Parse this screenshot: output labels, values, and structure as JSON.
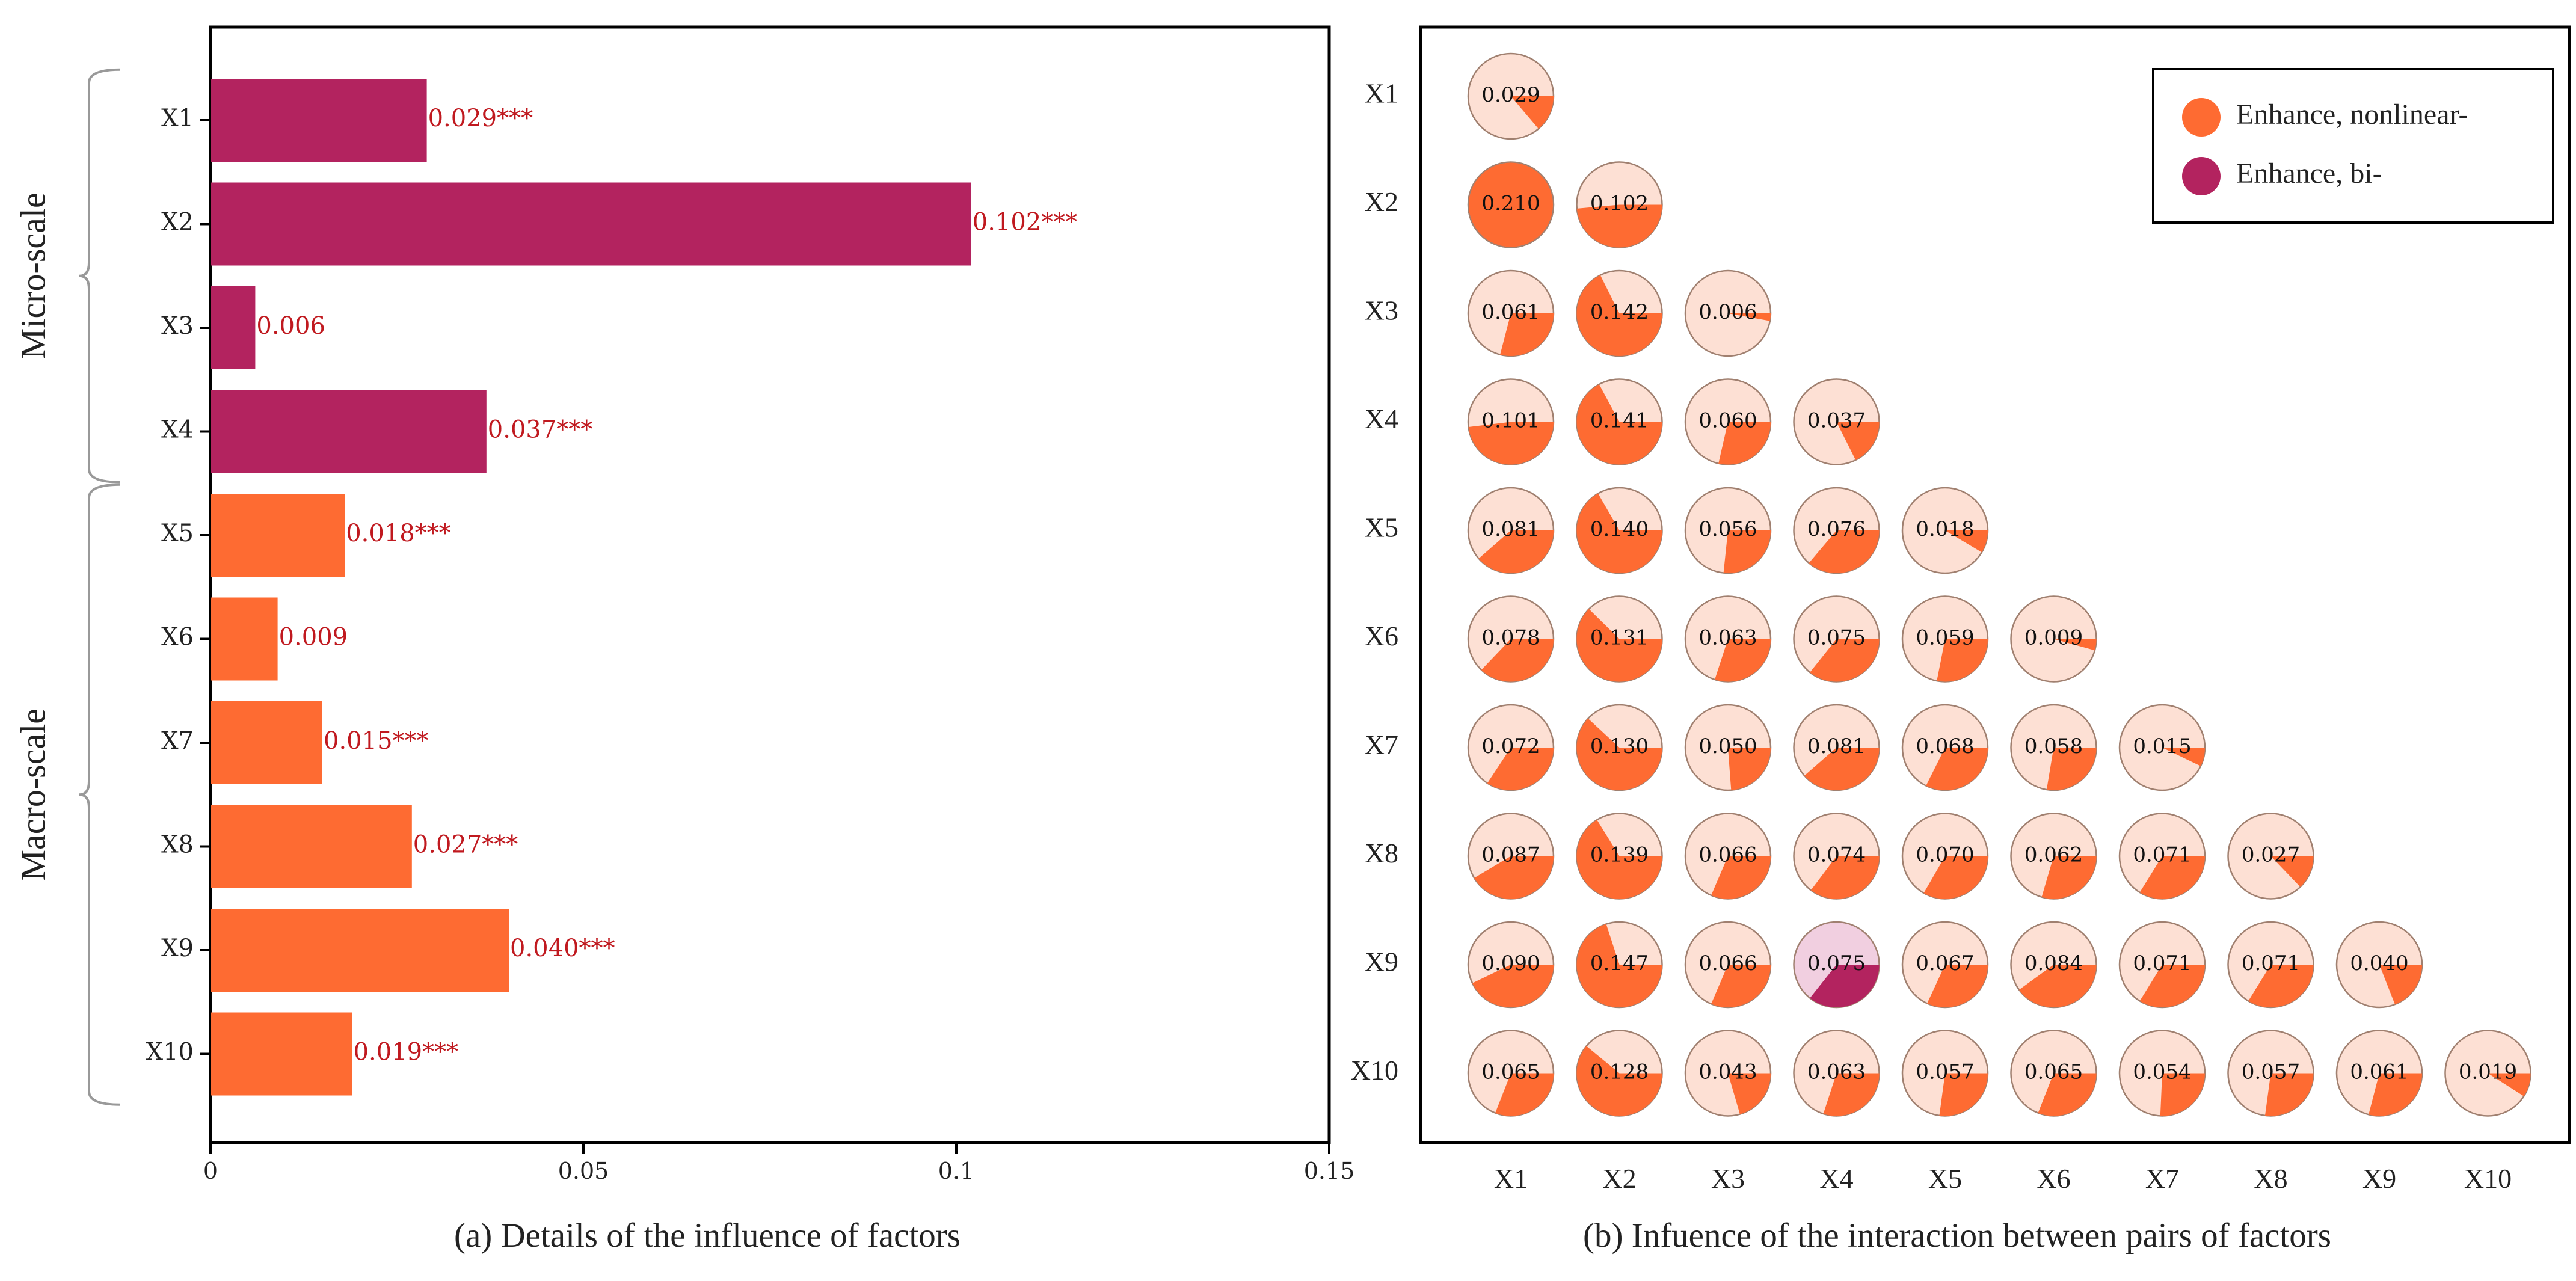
{
  "colors": {
    "micro": "#b3235f",
    "macro": "#fe6b32",
    "value_label": "#c0191f",
    "pie_background": "#fde0d4",
    "pie_background_bi": "#f1cfe0",
    "axis": "#000000",
    "bracket": "#999999"
  },
  "captions": {
    "left": "(a) Details of the influence of factors",
    "right": "(b) Infuence of the interaction between pairs of factors"
  },
  "chart_data": [
    {
      "type": "bar",
      "orientation": "horizontal",
      "title": "(a) Details of the influence of factors",
      "categories": [
        "X1",
        "X2",
        "X3",
        "X4",
        "X5",
        "X6",
        "X7",
        "X8",
        "X9",
        "X10"
      ],
      "values": [
        0.029,
        0.102,
        0.006,
        0.037,
        0.018,
        0.009,
        0.015,
        0.027,
        0.04,
        0.019
      ],
      "value_labels": [
        "0.029***",
        "0.102***",
        "0.006",
        "0.037***",
        "0.018***",
        "0.009",
        "0.015***",
        "0.027***",
        "0.040***",
        "0.019***"
      ],
      "groups": [
        "micro",
        "micro",
        "micro",
        "micro",
        "macro",
        "macro",
        "macro",
        "macro",
        "macro",
        "macro"
      ],
      "group_labels": [
        {
          "label": "Micro-scale",
          "from": "X1",
          "to": "X4"
        },
        {
          "label": "Macro-scale",
          "from": "X5",
          "to": "X10"
        }
      ],
      "xlim": [
        0,
        0.15
      ],
      "xticks": [
        0,
        0.05,
        0.1,
        0.15
      ],
      "xtick_labels": [
        "0",
        "0.05",
        "0.1",
        "0.15"
      ],
      "grid": false
    },
    {
      "type": "pie-matrix",
      "title": "(b) Infuence of the interaction between pairs of factors",
      "factors": [
        "X1",
        "X2",
        "X3",
        "X4",
        "X5",
        "X6",
        "X7",
        "X8",
        "X9",
        "X10"
      ],
      "description": "Lower-triangular matrix; each pie's filled fraction shows q value of the factor pair (full pie = 0.21)",
      "max_value": 0.21,
      "matrix": [
        [
          0.029
        ],
        [
          0.21,
          0.102
        ],
        [
          0.061,
          0.142,
          0.006
        ],
        [
          0.101,
          0.141,
          0.06,
          0.037
        ],
        [
          0.081,
          0.14,
          0.056,
          0.076,
          0.018
        ],
        [
          0.078,
          0.131,
          0.063,
          0.075,
          0.059,
          0.009
        ],
        [
          0.072,
          0.13,
          0.05,
          0.081,
          0.068,
          0.058,
          0.015
        ],
        [
          0.087,
          0.139,
          0.066,
          0.074,
          0.07,
          0.062,
          0.071,
          0.027
        ],
        [
          0.09,
          0.147,
          0.066,
          0.075,
          0.067,
          0.084,
          0.071,
          0.071,
          0.04
        ],
        [
          0.065,
          0.128,
          0.043,
          0.063,
          0.057,
          0.065,
          0.054,
          0.057,
          0.061,
          0.019
        ]
      ],
      "labels": [
        [
          "0.029"
        ],
        [
          "0.210",
          "0.102"
        ],
        [
          "0.061",
          "0.142",
          "0.006"
        ],
        [
          "0.101",
          "0.141",
          "0.060",
          "0.037"
        ],
        [
          "0.081",
          "0.140",
          "0.056",
          "0.076",
          "0.018"
        ],
        [
          "0.078",
          "0.131",
          "0.063",
          "0.075",
          "0.059",
          "0.009"
        ],
        [
          "0.072",
          "0.130",
          "0.050",
          "0.081",
          "0.068",
          "0.058",
          "0.015"
        ],
        [
          "0.087",
          "0.139",
          "0.066",
          "0.074",
          "0.070",
          "0.062",
          "0.071",
          "0.027"
        ],
        [
          "0.090",
          "0.147",
          "0.066",
          "0.075",
          "0.067",
          "0.084",
          "0.071",
          "0.071",
          "0.040"
        ],
        [
          "0.065",
          "0.128",
          "0.043",
          "0.063",
          "0.057",
          "0.065",
          "0.054",
          "0.057",
          "0.061",
          "0.019"
        ]
      ],
      "interaction_types": [
        [
          "nonlinear"
        ],
        [
          "nonlinear",
          "nonlinear"
        ],
        [
          "nonlinear",
          "nonlinear",
          "nonlinear"
        ],
        [
          "nonlinear",
          "nonlinear",
          "nonlinear",
          "nonlinear"
        ],
        [
          "nonlinear",
          "nonlinear",
          "nonlinear",
          "nonlinear",
          "nonlinear"
        ],
        [
          "nonlinear",
          "nonlinear",
          "nonlinear",
          "nonlinear",
          "nonlinear",
          "nonlinear"
        ],
        [
          "nonlinear",
          "nonlinear",
          "nonlinear",
          "nonlinear",
          "nonlinear",
          "nonlinear",
          "nonlinear"
        ],
        [
          "nonlinear",
          "nonlinear",
          "nonlinear",
          "nonlinear",
          "nonlinear",
          "nonlinear",
          "nonlinear",
          "nonlinear"
        ],
        [
          "nonlinear",
          "nonlinear",
          "nonlinear",
          "bi",
          "nonlinear",
          "nonlinear",
          "nonlinear",
          "nonlinear",
          "nonlinear"
        ],
        [
          "nonlinear",
          "nonlinear",
          "nonlinear",
          "nonlinear",
          "nonlinear",
          "nonlinear",
          "nonlinear",
          "nonlinear",
          "nonlinear",
          "nonlinear"
        ]
      ],
      "legend": {
        "position": "top-right",
        "entries": [
          {
            "type": "nonlinear",
            "label": "Enhance, nonlinear-",
            "color": "#fe6b32"
          },
          {
            "type": "bi",
            "label": "Enhance, bi-",
            "color": "#b3235f"
          }
        ]
      }
    }
  ]
}
